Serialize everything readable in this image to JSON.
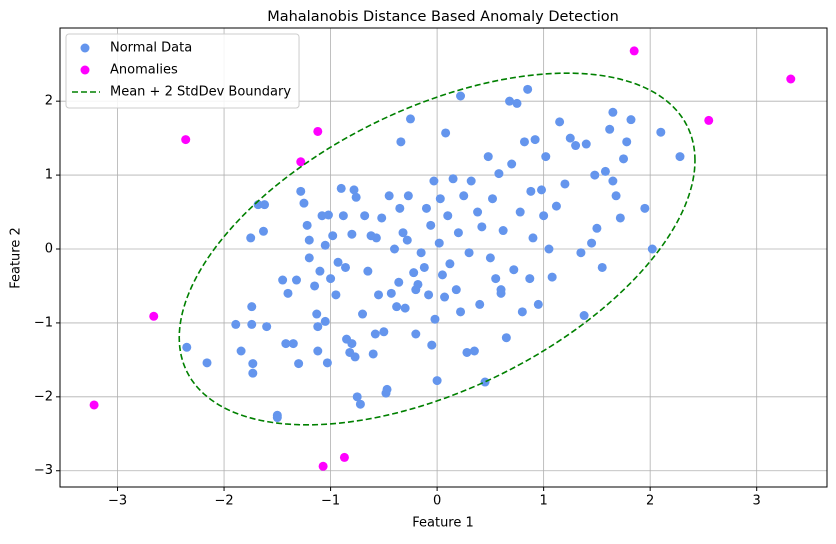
{
  "chart_data": {
    "type": "scatter",
    "title": "Mahalanobis Distance Based Anomaly Detection",
    "x_label": "Feature 1",
    "y_label": "Feature 2",
    "xlim": [
      -3.54,
      3.66
    ],
    "ylim": [
      -3.22,
      2.99
    ],
    "xticks": [
      {
        "value": -3,
        "label": "−3"
      },
      {
        "value": -2,
        "label": "−2"
      },
      {
        "value": -1,
        "label": "−1"
      },
      0,
      1,
      2,
      3
    ],
    "yticks": [
      {
        "value": -3,
        "label": "−3"
      },
      {
        "value": -2,
        "label": "−2"
      },
      {
        "value": -1,
        "label": "−1"
      },
      0,
      1,
      2
    ],
    "grid": true,
    "legend": "upper left",
    "series": [
      {
        "name": "Normal Data",
        "color": "#6495ed",
        "x": [
          -2.35,
          -2.16,
          -1.89,
          -1.84,
          -1.73,
          -1.73,
          -1.74,
          -1.74,
          -1.6,
          -1.75,
          -1.68,
          -1.62,
          -1.63,
          -1.5,
          -1.5,
          -1.45,
          -1.42,
          -1.4,
          -1.35,
          -1.32,
          -1.3,
          -1.28,
          -1.25,
          -1.22,
          -1.2,
          -1.2,
          -1.15,
          -1.13,
          -1.12,
          -1.12,
          -1.1,
          -1.08,
          -1.05,
          -1.05,
          -1.03,
          -1.02,
          -1.0,
          -0.98,
          -0.95,
          -0.93,
          -0.9,
          -0.88,
          -0.86,
          -0.85,
          -0.82,
          -0.8,
          -0.8,
          -0.78,
          -0.76,
          -0.77,
          -0.75,
          -0.72,
          -0.7,
          -0.68,
          -0.65,
          -0.62,
          -0.6,
          -0.58,
          -0.57,
          -0.55,
          -0.52,
          -0.5,
          -0.48,
          -0.47,
          -0.45,
          -0.43,
          -0.4,
          -0.38,
          -0.36,
          -0.35,
          -0.34,
          -0.32,
          -0.3,
          -0.28,
          -0.27,
          -0.25,
          -0.22,
          -0.2,
          -0.18,
          -0.15,
          -0.12,
          -0.1,
          -0.08,
          -0.06,
          -0.05,
          -0.03,
          -0.02,
          0.0,
          0.02,
          0.03,
          0.05,
          0.07,
          0.08,
          0.1,
          0.12,
          0.15,
          0.18,
          0.2,
          0.22,
          0.25,
          0.28,
          0.3,
          0.32,
          0.35,
          0.38,
          0.4,
          0.42,
          0.45,
          0.48,
          0.5,
          0.52,
          0.55,
          0.58,
          0.6,
          0.62,
          0.65,
          0.68,
          0.7,
          0.72,
          0.75,
          0.78,
          0.8,
          0.82,
          0.85,
          0.87,
          0.88,
          0.9,
          0.92,
          0.95,
          0.98,
          1.0,
          1.02,
          1.05,
          1.08,
          1.12,
          1.15,
          1.2,
          1.25,
          1.3,
          1.35,
          1.38,
          1.4,
          1.45,
          1.48,
          1.5,
          1.55,
          1.58,
          1.62,
          1.65,
          1.68,
          1.72,
          1.75,
          1.78,
          1.82,
          1.95,
          2.02,
          2.1,
          2.28,
          1.65,
          0.22,
          0.6,
          -0.2
        ],
        "values": [
          -1.33,
          -1.54,
          -1.02,
          -1.38,
          -1.55,
          -1.68,
          -0.78,
          -1.02,
          -1.05,
          0.15,
          0.6,
          0.6,
          0.24,
          -2.25,
          -2.28,
          -0.42,
          -1.28,
          -0.6,
          -1.28,
          -0.42,
          -1.55,
          0.78,
          0.62,
          0.32,
          0.12,
          -0.12,
          -0.5,
          -0.88,
          -1.05,
          -1.38,
          -0.3,
          0.45,
          -0.98,
          0.05,
          -1.54,
          0.46,
          -0.4,
          0.18,
          -0.62,
          -0.18,
          0.82,
          0.45,
          -0.25,
          -1.22,
          -1.4,
          -1.28,
          0.2,
          0.8,
          0.7,
          -1.46,
          -2.0,
          -2.1,
          -0.88,
          0.45,
          -0.3,
          0.18,
          -1.42,
          -1.15,
          0.15,
          -0.62,
          0.42,
          -1.12,
          -1.95,
          -1.9,
          0.72,
          -0.6,
          0.0,
          -0.78,
          -0.45,
          0.55,
          1.45,
          0.22,
          -0.8,
          0.12,
          0.72,
          1.76,
          -0.32,
          -1.15,
          -0.48,
          -0.05,
          -0.25,
          0.55,
          -0.62,
          0.32,
          -1.3,
          0.92,
          -0.95,
          -1.78,
          0.08,
          0.68,
          -0.35,
          -0.65,
          1.57,
          0.45,
          -0.2,
          0.95,
          -0.55,
          0.22,
          -0.85,
          0.72,
          -1.4,
          -0.05,
          0.92,
          -1.38,
          0.5,
          -0.75,
          0.3,
          -1.8,
          1.25,
          -0.12,
          0.68,
          -0.4,
          1.02,
          -0.6,
          0.25,
          -1.2,
          2.0,
          1.15,
          -0.28,
          1.97,
          0.5,
          -0.85,
          1.45,
          2.16,
          -0.4,
          0.78,
          0.15,
          1.48,
          -0.75,
          0.8,
          0.45,
          1.25,
          0.0,
          -0.38,
          0.58,
          1.72,
          0.88,
          1.5,
          1.4,
          -0.05,
          -0.9,
          1.42,
          0.08,
          1.0,
          0.28,
          -0.25,
          1.05,
          1.62,
          0.92,
          0.72,
          0.42,
          1.22,
          1.45,
          1.75,
          0.55,
          0.0,
          1.58,
          1.25,
          1.85,
          2.07,
          -0.55,
          -0.55
        ]
      },
      {
        "name": "Anomalies",
        "color": "#ff00ff",
        "x": [
          1.85,
          3.32,
          2.55,
          -2.36,
          -1.12,
          -1.28,
          -2.66,
          -3.22,
          -1.07,
          -0.87
        ],
        "values": [
          2.68,
          2.3,
          1.74,
          1.48,
          1.59,
          1.18,
          -0.91,
          -2.11,
          -2.94,
          -2.82
        ]
      }
    ],
    "boundary": {
      "name": "Mean + 2 StdDev Boundary",
      "color": "#008000",
      "center": [
        0.0,
        0.0
      ],
      "shape": [
        [
          5.86,
          2.9
        ],
        [
          2.9,
          5.66
        ]
      ]
    }
  }
}
